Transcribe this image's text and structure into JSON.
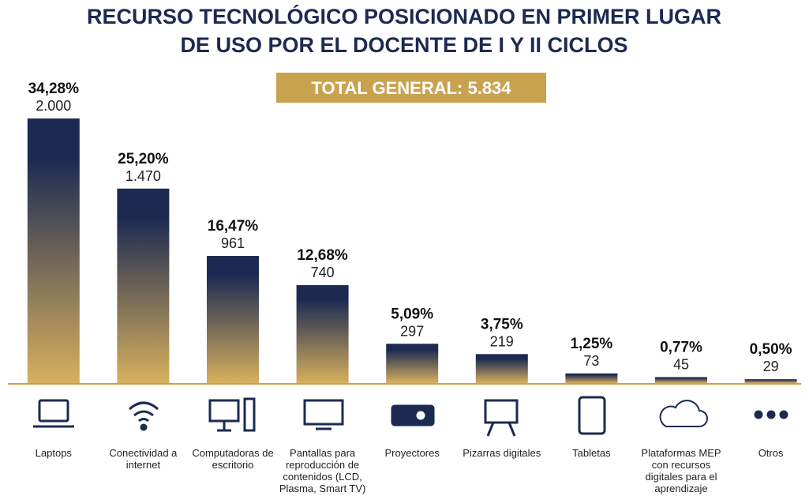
{
  "chart_data": {
    "type": "bar",
    "title": [
      "RECURSO TECNOLÓGICO POSICIONADO EN PRIMER LUGAR",
      "DE USO POR EL DOCENTE DE I Y II CICLOS"
    ],
    "subtitle": "TOTAL GENERAL: 5.834",
    "categories": [
      "Laptops",
      "Conectividad a internet",
      "Computadoras de escritorio",
      "Pantallas para reproducción de contenidos (LCD, Plasma, Smart TV)",
      "Proyectores",
      "Pizarras digitales",
      "Tabletas",
      "Plataformas MEP con recursos digitales para el aprendizaje",
      "Otros"
    ],
    "values": [
      2000,
      1470,
      961,
      740,
      297,
      219,
      73,
      45,
      29
    ],
    "value_labels": [
      "2.000",
      "1.470",
      "961",
      "740",
      "297",
      "219",
      "73",
      "45",
      "29"
    ],
    "percent_labels": [
      "34,28%",
      "25,20%",
      "16,47%",
      "12,68%",
      "5,09%",
      "3,75%",
      "1,25%",
      "0,77%",
      "0,50%"
    ],
    "colors": [
      "#1c2a52",
      "#d8b05e"
    ]
  }
}
